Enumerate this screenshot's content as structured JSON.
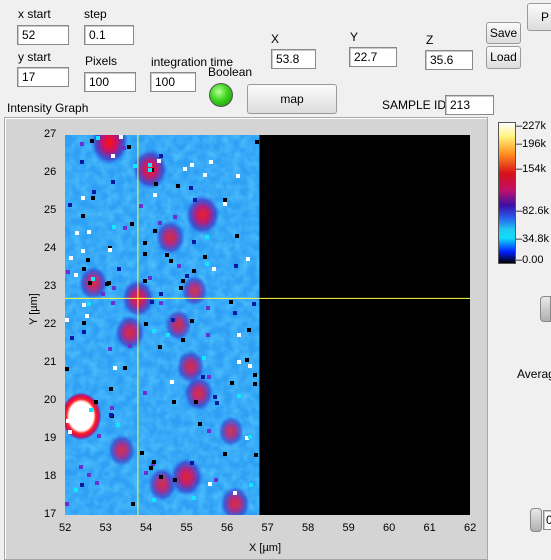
{
  "controls": {
    "x_start": {
      "label": "x start",
      "value": "52"
    },
    "y_start": {
      "label": "y start",
      "value": "17"
    },
    "step": {
      "label": "step",
      "value": "0.1"
    },
    "pixels": {
      "label": "Pixels",
      "value": "100"
    },
    "integration_time": {
      "label": "integration time",
      "value": "100"
    },
    "boolean_label": "Boolean",
    "map_button": "map",
    "x": {
      "label": "X",
      "value": "53.8"
    },
    "y": {
      "label": "Y",
      "value": "22.7"
    },
    "z": {
      "label": "Z",
      "value": "35.6"
    },
    "save_button": "Save",
    "load_button": "Load",
    "top_right_button": "P",
    "sample_id": {
      "label": "SAMPLE ID",
      "value": "213"
    },
    "average_label": "Averag",
    "spin_value": "0"
  },
  "colors": {
    "led_on": "#3ed41e",
    "cursor": "#ffff40",
    "plot_background": "#000000"
  },
  "chart_data": {
    "type": "heatmap",
    "title": "Intensity Graph",
    "xlabel": "X [µm]",
    "ylabel": "Y [µm]",
    "xlim": [
      52,
      62
    ],
    "ylim": [
      17,
      27
    ],
    "x_ticks": [
      "52",
      "53",
      "54",
      "55",
      "56",
      "57",
      "58",
      "59",
      "60",
      "61",
      "62"
    ],
    "y_ticks": [
      "17",
      "18",
      "19",
      "20",
      "21",
      "22",
      "23",
      "24",
      "25",
      "26",
      "27"
    ],
    "scan_x_range": [
      52,
      56.8
    ],
    "cursor": {
      "x": 53.8,
      "y": 22.7
    },
    "colorscale": {
      "min": 0,
      "max": 227000,
      "ticks": [
        "227k",
        "196k",
        "154k",
        "82.6k",
        "34.8k",
        "0.00"
      ]
    },
    "hotspots": [
      {
        "x": 52.4,
        "y": 19.6,
        "intensity": 227000
      },
      {
        "x": 53.1,
        "y": 26.8,
        "intensity": 200000
      },
      {
        "x": 54.1,
        "y": 26.1,
        "intensity": 170000
      },
      {
        "x": 55.4,
        "y": 24.9,
        "intensity": 165000
      },
      {
        "x": 54.6,
        "y": 24.3,
        "intensity": 120000
      },
      {
        "x": 52.7,
        "y": 23.1,
        "intensity": 115000
      },
      {
        "x": 53.8,
        "y": 22.7,
        "intensity": 150000
      },
      {
        "x": 53.6,
        "y": 21.8,
        "intensity": 125000
      },
      {
        "x": 55.1,
        "y": 20.9,
        "intensity": 110000
      },
      {
        "x": 55.3,
        "y": 20.2,
        "intensity": 120000
      },
      {
        "x": 54.8,
        "y": 22.0,
        "intensity": 95000
      },
      {
        "x": 53.4,
        "y": 18.7,
        "intensity": 100000
      },
      {
        "x": 55.0,
        "y": 18.0,
        "intensity": 150000
      },
      {
        "x": 54.4,
        "y": 17.8,
        "intensity": 110000
      },
      {
        "x": 56.2,
        "y": 17.3,
        "intensity": 120000
      },
      {
        "x": 55.2,
        "y": 22.9,
        "intensity": 90000
      },
      {
        "x": 56.1,
        "y": 19.2,
        "intensity": 85000
      }
    ]
  }
}
